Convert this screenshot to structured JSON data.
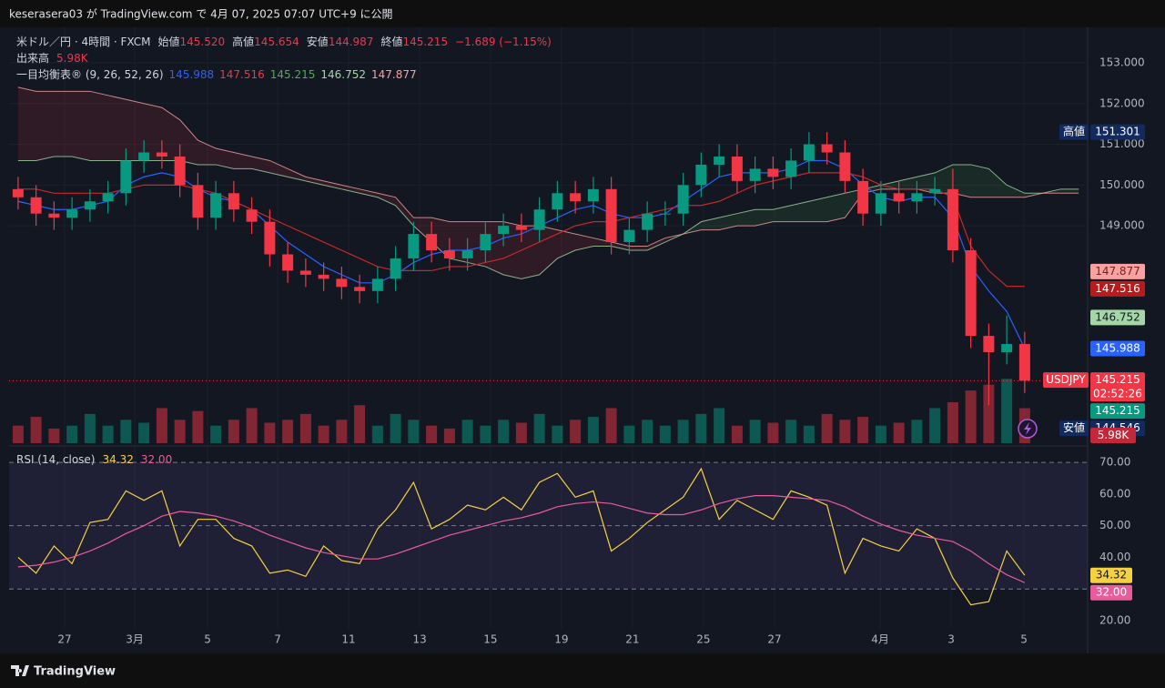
{
  "header": {
    "publisher": "keserasera03 が TradingView.com で 4月 07, 2025 07:07 UTC+9 に公開"
  },
  "footer": {
    "brand": "TradingView"
  },
  "chart_data": [
    {
      "type": "candlestick",
      "symbol": "米ドル／円 · 4時間 · FXCM",
      "ohlc_legend": [
        {
          "label": "始値",
          "value": "145.520"
        },
        {
          "label": "高値",
          "value": "145.654"
        },
        {
          "label": "安値",
          "value": "144.987"
        },
        {
          "label": "終値",
          "value": "145.215"
        }
      ],
      "change": "−1.689 (−1.15%)",
      "ichimoku_legend": {
        "label": "一目均衡表® (9, 26, 52, 26)",
        "values": [
          "145.988",
          "147.516",
          "145.215",
          "146.752",
          "147.877"
        ],
        "colors": [
          "#2962ff",
          "#f23645",
          "#4caf50",
          "#a5d6a7",
          "#f7a1a1"
        ]
      },
      "up_color": "#089981",
      "down_color": "#f23645",
      "open": [
        149.9,
        149.7,
        149.3,
        149.2,
        149.4,
        149.6,
        149.8,
        150.6,
        150.8,
        150.7,
        150.0,
        149.2,
        149.8,
        149.4,
        149.1,
        148.3,
        147.9,
        147.8,
        147.7,
        147.5,
        147.4,
        147.7,
        148.2,
        148.8,
        148.4,
        148.2,
        148.4,
        148.8,
        149.0,
        148.9,
        149.4,
        149.8,
        149.6,
        149.9,
        148.6,
        148.9,
        149.3,
        149.3,
        150.0,
        150.5,
        150.7,
        150.1,
        150.4,
        150.2,
        150.6,
        151.0,
        150.8,
        150.1,
        149.3,
        149.8,
        149.6,
        149.8,
        149.9,
        148.4,
        146.3,
        145.9,
        146.1
      ],
      "high": [
        150.2,
        150.0,
        149.6,
        149.7,
        149.9,
        150.1,
        150.9,
        151.1,
        151.1,
        151.0,
        150.3,
        150.1,
        150.1,
        149.7,
        149.4,
        148.6,
        148.2,
        148.1,
        148.0,
        147.8,
        148.0,
        148.5,
        149.1,
        149.1,
        148.7,
        148.7,
        149.1,
        149.3,
        149.3,
        149.7,
        150.1,
        150.1,
        150.2,
        150.2,
        149.2,
        149.6,
        149.6,
        150.3,
        150.8,
        151.0,
        151.0,
        150.7,
        150.7,
        150.9,
        151.3,
        151.3,
        151.1,
        150.4,
        150.1,
        150.1,
        150.1,
        150.2,
        150.4,
        148.7,
        146.6,
        146.8,
        146.4
      ],
      "low": [
        149.4,
        149.0,
        148.9,
        148.9,
        149.1,
        149.3,
        149.5,
        150.3,
        150.4,
        149.7,
        148.9,
        148.9,
        149.1,
        148.8,
        148.0,
        147.6,
        147.5,
        147.4,
        147.2,
        147.1,
        147.1,
        147.4,
        147.9,
        148.1,
        147.9,
        147.9,
        148.1,
        148.5,
        148.6,
        148.6,
        149.1,
        149.3,
        149.3,
        148.3,
        148.3,
        148.6,
        149.0,
        149.0,
        149.7,
        150.2,
        149.8,
        149.8,
        149.9,
        149.9,
        150.3,
        150.5,
        149.8,
        149.0,
        149.0,
        149.3,
        149.3,
        149.5,
        148.1,
        146.0,
        144.6,
        145.6,
        144.9
      ],
      "close": [
        149.7,
        149.3,
        149.2,
        149.4,
        149.6,
        149.8,
        150.6,
        150.8,
        150.7,
        150.0,
        149.2,
        149.8,
        149.4,
        149.1,
        148.3,
        147.9,
        147.8,
        147.7,
        147.5,
        147.4,
        147.7,
        148.2,
        148.8,
        148.4,
        148.2,
        148.4,
        148.8,
        149.0,
        148.9,
        149.4,
        149.8,
        149.6,
        149.9,
        148.6,
        148.9,
        149.3,
        149.3,
        150.0,
        150.5,
        150.7,
        150.1,
        150.4,
        150.2,
        150.6,
        151.0,
        150.8,
        150.1,
        149.3,
        149.8,
        149.6,
        149.8,
        149.9,
        148.4,
        146.3,
        145.9,
        146.1,
        145.2
      ],
      "overlays": [
        {
          "color": "#2962ff",
          "values": [
            149.6,
            149.5,
            149.4,
            149.4,
            149.5,
            149.6,
            150.0,
            150.2,
            150.3,
            150.2,
            149.9,
            149.7,
            149.6,
            149.4,
            149.0,
            148.6,
            148.3,
            148.0,
            147.8,
            147.6,
            147.6,
            147.8,
            148.1,
            148.3,
            148.4,
            148.4,
            148.5,
            148.7,
            148.8,
            149.0,
            149.2,
            149.4,
            149.5,
            149.3,
            149.2,
            149.2,
            149.3,
            149.6,
            149.9,
            150.2,
            150.3,
            150.3,
            150.3,
            150.4,
            150.6,
            150.6,
            150.4,
            150.0,
            149.7,
            149.6,
            149.7,
            149.7,
            149.2,
            148.0,
            147.4,
            146.9,
            145.988
          ]
        },
        {
          "color": "#c62828",
          "values": [
            149.9,
            149.9,
            149.8,
            149.8,
            149.8,
            149.8,
            149.9,
            150.0,
            150.0,
            150.0,
            149.9,
            149.8,
            149.6,
            149.4,
            149.2,
            149.0,
            148.8,
            148.6,
            148.4,
            148.2,
            148.0,
            147.9,
            147.9,
            147.9,
            148.0,
            148.0,
            148.1,
            148.2,
            148.4,
            148.6,
            148.8,
            149.0,
            149.1,
            149.1,
            149.2,
            149.3,
            149.4,
            149.5,
            149.5,
            149.6,
            149.8,
            150.0,
            150.1,
            150.2,
            150.3,
            150.3,
            150.3,
            150.2,
            150.0,
            149.9,
            149.9,
            149.9,
            149.7,
            148.5,
            147.9,
            147.516,
            147.516
          ]
        }
      ],
      "cloud": {
        "up_color": "#4caf50",
        "down_color": "#f23645",
        "a_color": "#a5d6a7",
        "b_color": "#f7a1a1",
        "span_a": [
          150.6,
          150.6,
          150.7,
          150.7,
          150.6,
          150.6,
          150.6,
          150.6,
          150.6,
          150.6,
          150.5,
          150.5,
          150.4,
          150.4,
          150.3,
          150.2,
          150.1,
          150.0,
          149.9,
          149.8,
          149.7,
          149.5,
          149.0,
          148.6,
          148.2,
          148.1,
          148.0,
          147.8,
          147.7,
          147.8,
          148.2,
          148.4,
          148.5,
          148.5,
          148.4,
          148.4,
          148.6,
          148.8,
          149.1,
          149.2,
          149.3,
          149.4,
          149.4,
          149.5,
          149.6,
          149.7,
          149.8,
          149.9,
          150.0,
          150.1,
          150.2,
          150.3,
          150.5,
          150.5,
          150.4,
          150.0,
          149.8,
          149.8,
          149.9,
          149.9
        ],
        "span_b": [
          152.4,
          152.3,
          152.3,
          152.3,
          152.3,
          152.2,
          152.1,
          152.0,
          151.9,
          151.6,
          151.1,
          150.9,
          150.8,
          150.7,
          150.6,
          150.4,
          150.2,
          150.1,
          150.0,
          149.9,
          149.8,
          149.7,
          149.2,
          149.2,
          149.1,
          149.1,
          149.1,
          149.1,
          149.0,
          149.0,
          148.9,
          148.8,
          148.7,
          148.6,
          148.5,
          148.5,
          148.7,
          148.8,
          148.9,
          148.9,
          149.0,
          149.0,
          149.1,
          149.1,
          149.1,
          149.1,
          149.2,
          149.8,
          149.9,
          149.9,
          149.9,
          149.8,
          149.8,
          149.7,
          149.7,
          149.7,
          149.7,
          149.8,
          149.8,
          149.8
        ]
      },
      "volume": {
        "label": "出来高",
        "last_label": "5.98K",
        "vlim": [
          0,
          14
        ],
        "values": [
          3.0,
          4.5,
          2.5,
          3.0,
          5.0,
          3.0,
          4.0,
          3.5,
          6.0,
          4.0,
          5.5,
          3.0,
          4.0,
          6.0,
          3.5,
          4.0,
          5.0,
          3.0,
          4.0,
          6.5,
          3.0,
          5.0,
          4.0,
          3.0,
          2.5,
          4.0,
          3.0,
          4.0,
          3.5,
          5.0,
          3.0,
          4.0,
          4.5,
          6.0,
          3.0,
          4.0,
          3.0,
          4.0,
          5.0,
          6.0,
          3.0,
          4.0,
          3.5,
          4.0,
          3.0,
          5.0,
          4.0,
          4.5,
          3.0,
          3.5,
          4.0,
          6.0,
          7.0,
          9.0,
          10.0,
          11.0,
          5.98
        ]
      },
      "price_labels": [
        {
          "tag": "高値",
          "value": 151.301,
          "color": "#132a5e",
          "text_color": "#ffffff"
        },
        {
          "value": 147.877,
          "color": "#f7a1a1",
          "text_color": "#7f1d1d"
        },
        {
          "value": 147.516,
          "color": "#b71c1c",
          "text_color": "#ffffff"
        },
        {
          "value": 146.752,
          "color": "#a5d6a7",
          "text_color": "#131722"
        },
        {
          "value": 145.988,
          "color": "#2962ff",
          "text_color": "#ffffff"
        },
        {
          "tag": "USDJPY",
          "value": 145.215,
          "countdown": "02:52:26",
          "color": "#f23645",
          "text_color": "#ffffff"
        },
        {
          "value": 145.215,
          "color": "#089981",
          "text_color": "#ffffff"
        },
        {
          "tag": "安値",
          "value": 144.546,
          "color": "#132a5e",
          "text_color": "#ffffff"
        }
      ],
      "xlim": [
        -0.5,
        59.5
      ],
      "xticks": [
        {
          "value": 2.59,
          "label": "27"
        },
        {
          "value": 6.49,
          "label": "3月"
        },
        {
          "value": 10.54,
          "label": "5"
        },
        {
          "value": 14.44,
          "label": "7"
        },
        {
          "value": 18.39,
          "label": "11"
        },
        {
          "value": 22.34,
          "label": "13"
        },
        {
          "value": 26.28,
          "label": "15"
        },
        {
          "value": 30.23,
          "label": "19"
        },
        {
          "value": 34.18,
          "label": "21"
        },
        {
          "value": 38.13,
          "label": "25"
        },
        {
          "value": 42.08,
          "label": "27"
        },
        {
          "value": 47.96,
          "label": "4月"
        },
        {
          "value": 51.91,
          "label": "3"
        },
        {
          "value": 55.96,
          "label": "5"
        }
      ],
      "ylim": [
        143.6,
        153.87
      ],
      "yticks": [
        {
          "value": 149,
          "label": "149.000"
        },
        {
          "value": 150,
          "label": "150.000"
        },
        {
          "value": 151,
          "label": "151.000"
        },
        {
          "value": 152,
          "label": "152.000"
        },
        {
          "value": 153,
          "label": "153.000"
        }
      ],
      "grid": true
    },
    {
      "type": "line",
      "title": "RSI (14, close)",
      "series": [
        {
          "color": "#f5d142",
          "values": [
            40,
            35,
            43.6,
            38,
            51,
            52,
            61,
            58,
            61,
            43.6,
            52,
            52,
            46,
            43.6,
            35,
            36,
            34,
            43.6,
            39,
            38,
            49,
            55,
            63.7,
            49,
            52,
            56.5,
            55,
            59,
            55,
            63.7,
            66.5,
            59,
            61,
            42,
            46,
            51,
            55,
            59,
            68,
            52,
            58,
            55,
            52,
            61,
            59,
            56.5,
            35,
            46,
            43.6,
            42,
            49,
            46,
            33.5,
            25,
            26,
            42,
            34.32
          ]
        },
        {
          "color": "#e85c9c",
          "last_label": "32.00",
          "values": [
            37,
            37.5,
            38.5,
            40,
            42,
            44.5,
            47.5,
            50,
            53,
            54.5,
            54,
            53,
            51.5,
            49.5,
            47,
            45,
            43,
            41.5,
            40.5,
            39.5,
            39.5,
            41,
            43,
            45,
            47,
            48.5,
            50,
            51.5,
            52.5,
            54,
            56,
            57,
            57.5,
            57,
            55.5,
            54,
            53.5,
            53.5,
            55,
            57,
            58.5,
            59.5,
            59.5,
            59,
            58.5,
            58,
            56,
            53,
            50.5,
            48.5,
            47,
            46,
            45,
            42,
            38,
            34.5,
            32.0
          ]
        }
      ],
      "levels": [
        70,
        50,
        30
      ],
      "band_color": "#7e57c2",
      "ylim": [
        17.7,
        75.2
      ],
      "yticks": [
        {
          "value": 20,
          "label": "20.00"
        },
        {
          "value": 40,
          "label": "40.00"
        },
        {
          "value": 50,
          "label": "50.00"
        },
        {
          "value": 60,
          "label": "60.00"
        },
        {
          "value": 70,
          "label": "70.00"
        }
      ],
      "grid": true
    }
  ]
}
